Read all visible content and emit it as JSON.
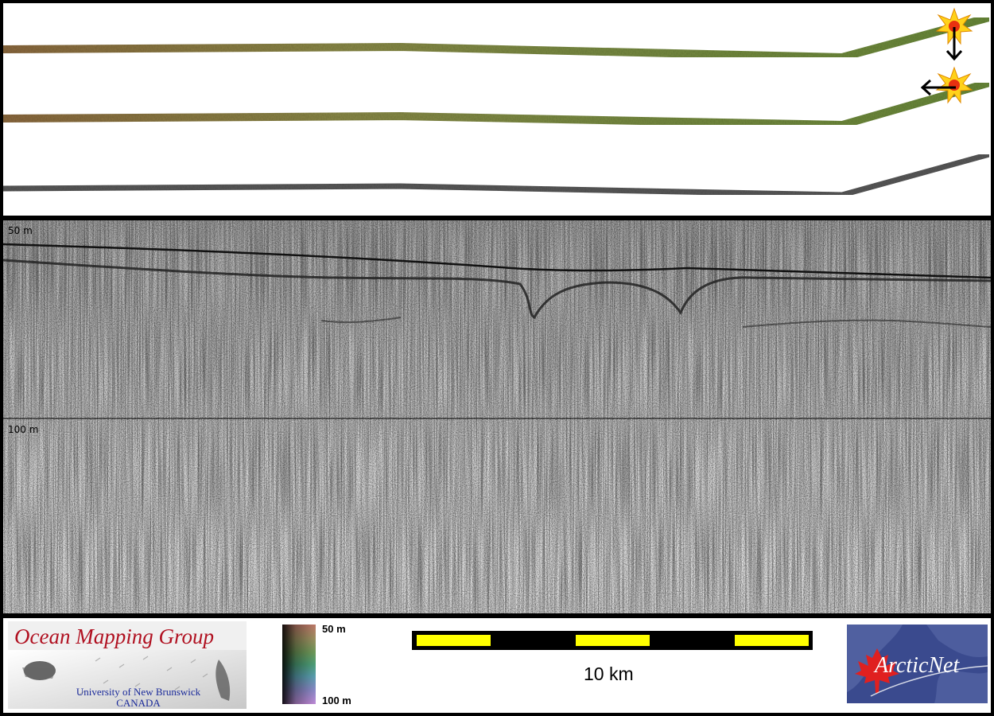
{
  "profile": {
    "depth_top_label": "50 m",
    "depth_mid_label": "100 m"
  },
  "footer": {
    "omg_title": "Ocean Mapping Group",
    "omg_university": "University of New Brunswick",
    "omg_country": "CANADA",
    "legend_top": "50 m",
    "legend_bottom": "100 m",
    "scale_label": "10 km",
    "arcticnet_label": "ArcticNet"
  },
  "icons": [
    "sun-marker-icon",
    "arrow-down-icon",
    "arrow-left-icon",
    "maple-leaf-icon"
  ],
  "colors": {
    "frame": "#000000",
    "scale_yellow": "#ffff00",
    "omg_red": "#b01020",
    "unb_blue": "#1a2a9a",
    "arcticnet_bg": "#3a4a8e",
    "track_green": "#6f8a3c",
    "track_brown": "#8c6a40",
    "track_gray": "#555555"
  }
}
